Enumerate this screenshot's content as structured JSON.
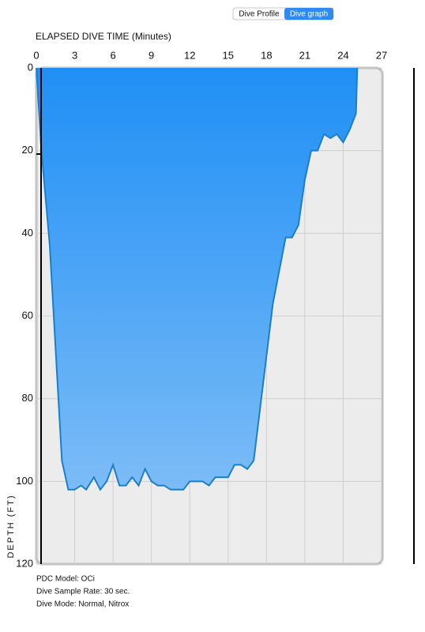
{
  "tabs": [
    "Dive Profile",
    "Dive graph"
  ],
  "selected_tab": 1,
  "chart_data": {
    "type": "area",
    "title": "ELAPSED DIVE TIME (Minutes)",
    "y_label": "DEPTH (FT)",
    "x": [
      0,
      0.4,
      1.05,
      2.0,
      2.5,
      3.0,
      3.5,
      3.9,
      4.5,
      5.0,
      5.5,
      6.0,
      6.5,
      7.0,
      7.5,
      8.0,
      8.5,
      9.0,
      9.5,
      10.0,
      10.5,
      11.5,
      12.0,
      13.0,
      13.5,
      14.0,
      15.0,
      15.5,
      16.0,
      16.5,
      17.0,
      18.5,
      19.5,
      20.0,
      20.5,
      21.0,
      21.5,
      22.0,
      22.5,
      23.0,
      23.5,
      24.0,
      24.5,
      25.0,
      25.1
    ],
    "values": [
      0,
      20,
      43,
      95,
      102,
      102,
      101,
      102,
      99,
      102,
      100,
      96,
      101,
      101,
      99,
      101,
      97,
      100,
      101,
      101,
      102,
      102,
      100,
      100,
      101,
      99,
      99,
      96,
      96,
      97,
      95,
      57,
      41,
      41,
      38,
      27,
      20,
      20,
      16,
      17,
      16,
      18,
      15,
      11,
      0
    ],
    "color": "#2a98f7",
    "xlim": [
      0,
      27
    ],
    "xticks": [
      0,
      3,
      6,
      9,
      12,
      15,
      18,
      21,
      24,
      27
    ],
    "ylim": [
      0,
      120
    ],
    "yticks": [
      0,
      20,
      40,
      60,
      80,
      100,
      120
    ],
    "invert_y": true,
    "grid": true
  },
  "info": [
    "PDC Model: OCi",
    "Dive Sample Rate: 30 sec.",
    "Dive Mode: Normal, Nitrox"
  ]
}
